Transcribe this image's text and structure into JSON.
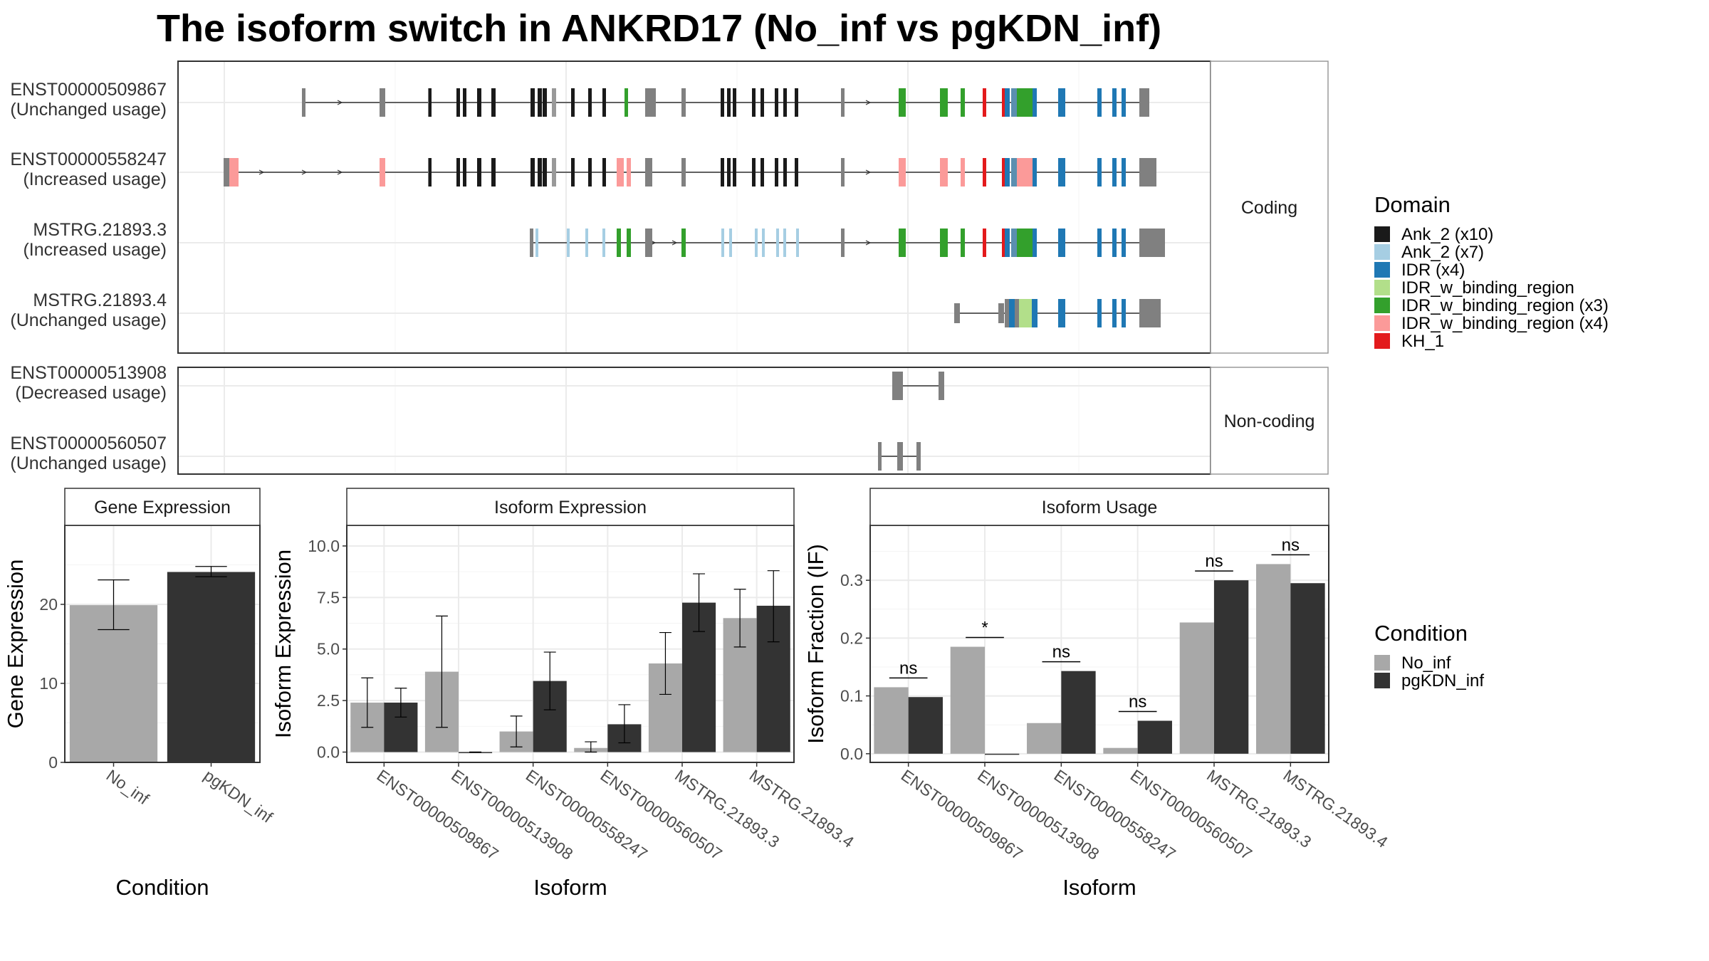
{
  "title": "The isoform switch in ANKRD17 (No_inf vs pgKDN_inf)",
  "colors": {
    "Ank_2 (x10)": "#1a1a1a",
    "Ank_2 (x7)": "#a6cee3",
    "IDR (x4)": "#1f78b4",
    "IDR_w_binding_region": "#b2df8a",
    "IDR_w_binding_region (x3)": "#33a02c",
    "IDR_w_binding_region (x4)": "#fb9a99",
    "KH_1": "#e31a1c",
    "exon": "#808080",
    "No_inf": "#a8a8a8",
    "pgKDN_inf": "#333333"
  },
  "structure": {
    "facets": [
      "Coding",
      "Non-coding"
    ],
    "transcripts": [
      {
        "id": "ENST00000509867",
        "usage": "(Unchanged usage)",
        "facet": "Coding"
      },
      {
        "id": "ENST00000558247",
        "usage": "(Increased usage)",
        "facet": "Coding"
      },
      {
        "id": "MSTRG.21893.3",
        "usage": "(Increased usage)",
        "facet": "Coding"
      },
      {
        "id": "MSTRG.21893.4",
        "usage": "(Unchanged usage)",
        "facet": "Coding"
      },
      {
        "id": "ENST00000513908",
        "usage": "(Decreased usage)",
        "facet": "Non-coding"
      },
      {
        "id": "ENST00000560507",
        "usage": "(Unchanged usage)",
        "facet": "Non-coding"
      }
    ],
    "legend_title": "Domain",
    "domains": [
      "Ank_2 (x10)",
      "Ank_2 (x7)",
      "IDR (x4)",
      "IDR_w_binding_region",
      "IDR_w_binding_region (x3)",
      "IDR_w_binding_region (x4)",
      "KH_1"
    ]
  },
  "chart_data": [
    {
      "type": "bar",
      "title": "Gene Expression",
      "xlabel": "Condition",
      "ylabel": "Gene Expression",
      "categories": [
        "No_inf",
        "pgKDN_inf"
      ],
      "values": [
        19.9,
        24.1
      ],
      "error_low": [
        16.8,
        23.5
      ],
      "error_high": [
        23.1,
        24.8
      ],
      "ylim": [
        0,
        30
      ],
      "yticks": [
        0,
        10,
        20
      ]
    },
    {
      "type": "bar",
      "title": "Isoform Expression",
      "xlabel": "Isoform",
      "ylabel": "Isoform Expression",
      "categories": [
        "ENST00000509867",
        "ENST00000513908",
        "ENST00000558247",
        "ENST00000560507",
        "MSTRG.21893.3",
        "MSTRG.21893.4"
      ],
      "series": [
        {
          "name": "No_inf",
          "values": [
            2.4,
            3.9,
            1.0,
            0.2,
            4.3,
            6.5
          ],
          "error_low": [
            1.2,
            1.2,
            0.25,
            0.0,
            2.8,
            5.1
          ],
          "error_high": [
            3.6,
            6.6,
            1.75,
            0.5,
            5.8,
            7.9
          ]
        },
        {
          "name": "pgKDN_inf",
          "values": [
            2.4,
            0.0,
            3.45,
            1.35,
            7.25,
            7.1
          ],
          "error_low": [
            1.7,
            0.0,
            2.05,
            0.45,
            5.85,
            5.35
          ],
          "error_high": [
            3.1,
            0.0,
            4.85,
            2.3,
            8.65,
            8.8
          ]
        }
      ],
      "ylim": [
        -0.5,
        11.0
      ],
      "yticks": [
        0.0,
        2.5,
        5.0,
        7.5,
        10.0
      ],
      "ytick_labels": [
        "0.0",
        "2.5",
        "5.0",
        "7.5",
        "10.0"
      ]
    },
    {
      "type": "bar",
      "title": "Isoform Usage",
      "xlabel": "Isoform",
      "ylabel": "Isoform Fraction (IF)",
      "categories": [
        "ENST00000509867",
        "ENST00000513908",
        "ENST00000558247",
        "ENST00000560507",
        "MSTRG.21893.3",
        "MSTRG.21893.4"
      ],
      "series": [
        {
          "name": "No_inf",
          "values": [
            0.115,
            0.185,
            0.053,
            0.01,
            0.227,
            0.328
          ]
        },
        {
          "name": "pgKDN_inf",
          "values": [
            0.098,
            0.0,
            0.143,
            0.057,
            0.3,
            0.295
          ]
        }
      ],
      "significance": [
        "ns",
        "*",
        "ns",
        "ns",
        "ns",
        "ns"
      ],
      "ylim": [
        -0.015,
        0.395
      ],
      "yticks": [
        0.0,
        0.1,
        0.2,
        0.3
      ],
      "ytick_labels": [
        "0.0",
        "0.1",
        "0.2",
        "0.3"
      ]
    }
  ],
  "condition_legend": {
    "title": "Condition",
    "items": [
      "No_inf",
      "pgKDN_inf"
    ]
  }
}
